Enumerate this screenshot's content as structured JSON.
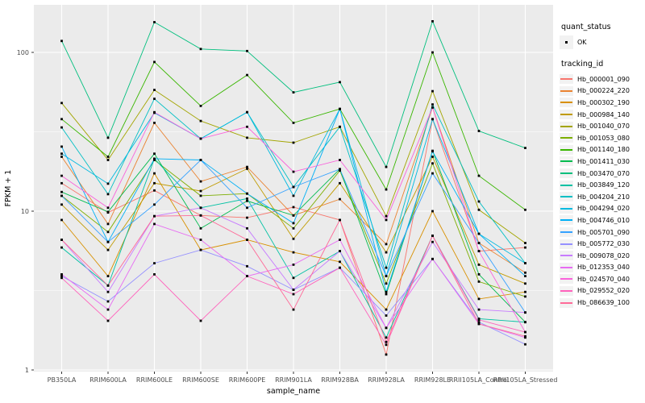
{
  "figure": {
    "background": "#FFFFFF",
    "panel_background": "#EBEBEB",
    "grid_color": "#FFFFFF",
    "tick_text_color": "#4D4D4D",
    "point_color": "#000000"
  },
  "axes": {
    "x": {
      "title": "sample_name",
      "tick_labels": [
        "PB350LA",
        "RRIM600LA",
        "RRIM600LE",
        "RRIM600SE",
        "RRIM600PE",
        "RRIM901LA",
        "RRIM928BA",
        "RRIM928LA",
        "RRIM928LE",
        "RRII105LA_Control",
        "RRII105LA_Stressed"
      ]
    },
    "y": {
      "title": "FPKM + 1",
      "tick_labels": [
        "1",
        "10",
        "100"
      ],
      "scale": "log10"
    }
  },
  "legend": {
    "quant_status_title": "quant_status",
    "quant_status_items": [
      {
        "label": "OK",
        "marker": "black-square"
      }
    ],
    "tracking_id_title": "tracking_id"
  },
  "chart_data": {
    "type": "line",
    "title": "",
    "xlabel": "sample_name",
    "ylabel": "FPKM + 1",
    "y_scale": "log10",
    "ylim": [
      1,
      200
    ],
    "y_ticks": [
      1,
      10,
      100
    ],
    "grid": true,
    "legend_position": "right",
    "point_marker": "black-square",
    "categories": [
      "PB350LA",
      "RRIM600LA",
      "RRIM600LE",
      "RRIM600SE",
      "RRIM600PE",
      "RRIM901LA",
      "RRIM928BA",
      "RRIM928LA",
      "RRIM928LE",
      "RRII105LA_Control",
      "RRII105LA_Stressed"
    ],
    "series": [
      {
        "name": "Hb_000001_090",
        "color": "#F8766D",
        "values": [
          15,
          9.8,
          13.5,
          9.4,
          9.1,
          10.6,
          8.8,
          1.25,
          38,
          5.6,
          5.9
        ]
      },
      {
        "name": "Hb_000224_220",
        "color": "#EA8331",
        "values": [
          22,
          8.3,
          36,
          15.4,
          19,
          9.4,
          11.9,
          6.2,
          45,
          6.3,
          4.1
        ]
      },
      {
        "name": "Hb_000302_190",
        "color": "#D89000",
        "values": [
          8.8,
          3.9,
          17.3,
          5.7,
          6.6,
          5.5,
          4.8,
          2.4,
          10,
          2.8,
          3.1
        ]
      },
      {
        "name": "Hb_000984_140",
        "color": "#C09B00",
        "values": [
          11,
          5.7,
          15,
          13.4,
          18.5,
          6.7,
          15,
          5.5,
          22,
          4.6,
          3.5
        ]
      },
      {
        "name": "Hb_001040_070",
        "color": "#A3A500",
        "values": [
          48,
          21,
          58,
          37,
          29,
          27,
          34,
          9.3,
          57,
          10.2,
          6.3
        ]
      },
      {
        "name": "Hb_001053_080",
        "color": "#7CAE00",
        "values": [
          12.5,
          7.4,
          21,
          12.5,
          12.9,
          7.8,
          18,
          3.5,
          20,
          3.6,
          2.9
        ]
      },
      {
        "name": "Hb_001140_180",
        "color": "#39B600",
        "values": [
          38,
          22,
          87,
          46,
          72,
          36,
          44,
          13.7,
          100,
          16.7,
          10.2
        ]
      },
      {
        "name": "Hb_001411_030",
        "color": "#00BB4E",
        "values": [
          13.2,
          9.9,
          23,
          7.8,
          11.6,
          9.4,
          18.4,
          3.0,
          24,
          4.0,
          2.0
        ]
      },
      {
        "name": "Hb_003470_070",
        "color": "#00BF7D",
        "values": [
          118,
          29,
          155,
          105,
          102,
          56,
          65,
          19,
          157,
          32,
          25
        ]
      },
      {
        "name": "Hb_003849_120",
        "color": "#00C1A3",
        "values": [
          5.9,
          3.4,
          21.4,
          10.5,
          12,
          3.8,
          5.6,
          1.6,
          7.0,
          2.1,
          2.0
        ]
      },
      {
        "name": "Hb_004204_210",
        "color": "#00BFC4",
        "values": [
          33.7,
          12.8,
          51,
          28.6,
          42,
          14.2,
          34,
          4.4,
          47,
          11.5,
          4.7
        ]
      },
      {
        "name": "Hb_004294_020",
        "color": "#00BAE0",
        "values": [
          23,
          14.9,
          41.6,
          28.6,
          42,
          12.5,
          44,
          3.9,
          38,
          7.2,
          4.7
        ]
      },
      {
        "name": "Hb_004746_010",
        "color": "#00B0F6",
        "values": [
          25.5,
          6.4,
          21.4,
          21,
          12.9,
          8.4,
          44,
          3.1,
          23.8,
          7.2,
          3.9
        ]
      },
      {
        "name": "Hb_005701_090",
        "color": "#35A2FF",
        "values": [
          12.5,
          6.4,
          11,
          21,
          10.5,
          14.2,
          18.4,
          3.9,
          17.3,
          6.3,
          2.3
        ]
      },
      {
        "name": "Hb_005772_030",
        "color": "#9590FF",
        "values": [
          3.9,
          2.7,
          4.7,
          5.7,
          4.5,
          3.2,
          4.4,
          2.2,
          5.0,
          2.0,
          1.45
        ]
      },
      {
        "name": "Hb_009078_020",
        "color": "#C77CFF",
        "values": [
          6.6,
          3.1,
          9.3,
          10.5,
          7.8,
          3.2,
          5.6,
          1.84,
          6.4,
          2.4,
          2.3
        ]
      },
      {
        "name": "Hb_012353_040",
        "color": "#E76BF3",
        "values": [
          4.0,
          2.4,
          8.3,
          6.6,
          3.9,
          4.6,
          6.6,
          1.84,
          5.0,
          1.95,
          1.6
        ]
      },
      {
        "name": "Hb_024570_040",
        "color": "#FA62DB",
        "values": [
          16.7,
          10.5,
          42,
          28.6,
          34,
          17.7,
          21,
          8.8,
          45,
          5.6,
          1.73
        ]
      },
      {
        "name": "Hb_029552_020",
        "color": "#FF62BC",
        "values": [
          3.8,
          2.04,
          4.0,
          2.04,
          3.9,
          3.0,
          4.4,
          1.44,
          7.0,
          2.07,
          1.73
        ]
      },
      {
        "name": "Hb_086639_100",
        "color": "#FF6A98",
        "values": [
          6.6,
          3.4,
          9.3,
          9.4,
          6.6,
          2.4,
          8.8,
          1.5,
          7.0,
          1.95,
          1.63
        ]
      }
    ]
  }
}
